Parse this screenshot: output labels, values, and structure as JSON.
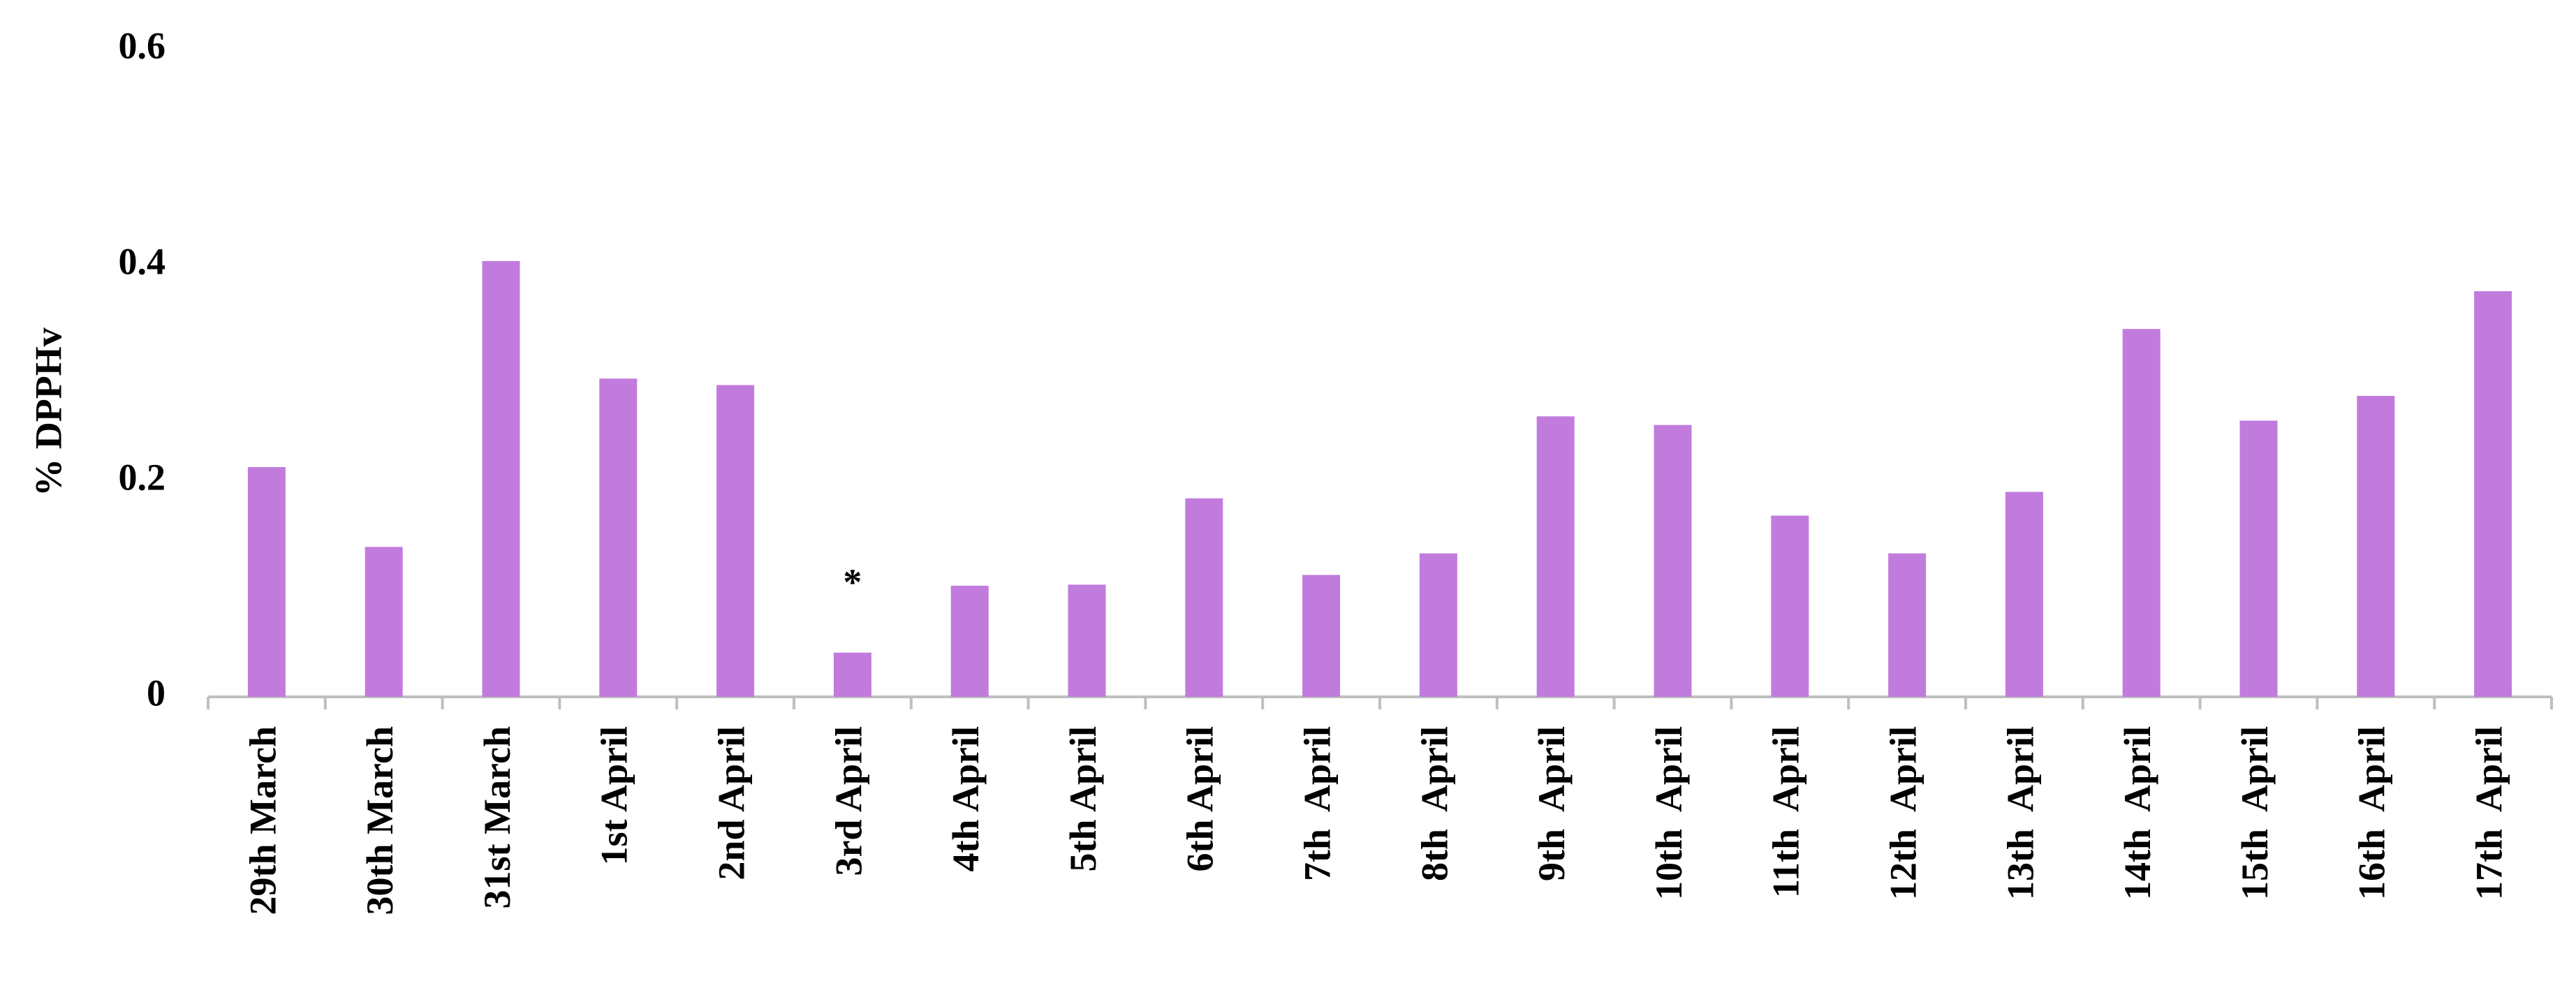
{
  "chart_data": {
    "type": "bar",
    "y_label": "% DPPHv",
    "categories": [
      "29th March",
      "30th March",
      "31st March",
      "1st April",
      "2nd April",
      "3rd April",
      "4th April",
      "5th April",
      "6th April",
      "7th  April",
      "8th  April",
      "9th  April",
      "10th  April",
      "11th  April",
      "12th  April",
      "13th  April",
      "14th  April",
      "15th  April",
      "16th  April",
      "17th  April"
    ],
    "values": [
      0.213,
      0.139,
      0.404,
      0.295,
      0.289,
      0.041,
      0.103,
      0.104,
      0.184,
      0.113,
      0.133,
      0.26,
      0.252,
      0.168,
      0.133,
      0.19,
      0.341,
      0.256,
      0.279,
      0.376
    ],
    "color": "#c17bdd",
    "ylim": [
      0,
      0.6
    ],
    "yticks": [
      0,
      0.2,
      0.4,
      0.6
    ],
    "grid": false,
    "annotations": [
      {
        "text": "*",
        "category": "3rd April"
      }
    ]
  }
}
